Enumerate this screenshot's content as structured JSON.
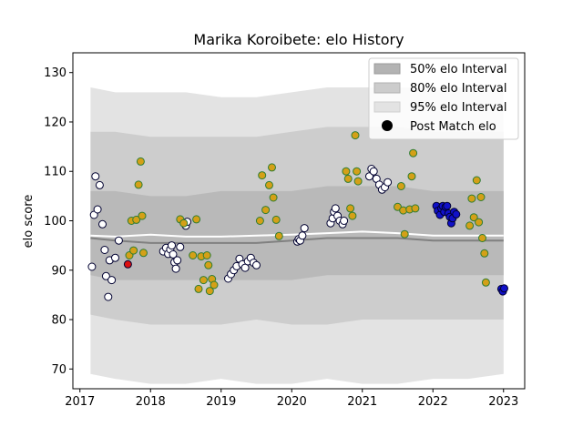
{
  "colors": {
    "band95": "#e3e3e3",
    "band80": "#cdcdcd",
    "band50": "#b9b9b9",
    "median_line": "#808080",
    "mean_line": "#ffffff",
    "point_white": "#ffffff",
    "point_gold": "#d4a017",
    "point_blue": "#1010c8",
    "point_red": "#dd1010",
    "marker_edge_green": "#2e7d32",
    "marker_edge_dark": "#000030"
  },
  "chart_data": {
    "type": "scatter",
    "title": "Marika Koroibete: elo History",
    "xlabel": "",
    "ylabel": "elo score",
    "xlim": [
      2016.9,
      2023.3
    ],
    "ylim": [
      66,
      134
    ],
    "x_ticks": [
      2017,
      2018,
      2019,
      2020,
      2021,
      2022,
      2023
    ],
    "y_ticks": [
      70,
      80,
      90,
      100,
      110,
      120,
      130
    ],
    "legend": {
      "placement": "top-right",
      "entries": [
        "50% elo Interval",
        "80% elo Interval",
        "95% elo Interval",
        "Post Match elo"
      ]
    },
    "bands": {
      "x": [
        2017.15,
        2017.5,
        2018.0,
        2018.5,
        2019.0,
        2019.5,
        2020.0,
        2020.5,
        2021.0,
        2021.5,
        2022.0,
        2022.5,
        2023.0
      ],
      "p95_high": [
        127,
        126,
        126,
        126,
        125,
        125,
        126,
        127,
        127,
        127,
        127,
        127,
        126
      ],
      "p95_low": [
        69,
        68,
        67,
        67,
        68,
        67,
        67,
        68,
        67,
        67,
        68,
        68,
        69
      ],
      "p80_high": [
        118,
        118,
        117,
        117,
        117,
        117,
        118,
        119,
        119,
        119,
        118,
        118,
        118
      ],
      "p80_low": [
        81,
        80,
        79,
        79,
        79,
        80,
        79,
        79,
        80,
        80,
        80,
        80,
        80
      ],
      "p50_high": [
        106,
        106,
        105,
        105,
        106,
        106,
        106,
        107,
        107,
        107,
        106,
        106,
        106
      ],
      "p50_low": [
        89,
        88,
        88,
        88,
        88,
        88,
        88,
        89,
        89,
        89,
        89,
        89,
        89
      ],
      "median": [
        96.5,
        96.0,
        95.5,
        95.5,
        95.5,
        95.5,
        96.0,
        96.5,
        96.5,
        96.5,
        96.0,
        96.0,
        96.0
      ],
      "mean": [
        97.0,
        96.8,
        97.2,
        96.8,
        96.8,
        97.0,
        97.2,
        97.5,
        97.8,
        97.5,
        97.0,
        97.0,
        97.0
      ]
    },
    "series": [
      {
        "color_key": "white",
        "points": [
          [
            2017.17,
            90.7
          ],
          [
            2017.2,
            101.2
          ],
          [
            2017.22,
            109
          ],
          [
            2017.25,
            102.3
          ],
          [
            2017.28,
            107.2
          ],
          [
            2017.32,
            99.3
          ],
          [
            2017.35,
            94.1
          ],
          [
            2017.37,
            88.8
          ],
          [
            2017.4,
            84.6
          ],
          [
            2017.42,
            92
          ],
          [
            2017.45,
            88
          ],
          [
            2017.5,
            92.5
          ],
          [
            2017.55,
            96
          ],
          [
            2018.18,
            93.8
          ],
          [
            2018.22,
            94.5
          ],
          [
            2018.25,
            93.3
          ],
          [
            2018.28,
            94.2
          ],
          [
            2018.3,
            95
          ],
          [
            2018.32,
            93.2
          ],
          [
            2018.34,
            91.6
          ],
          [
            2018.36,
            90.3
          ],
          [
            2018.38,
            92
          ],
          [
            2018.42,
            94.7
          ],
          [
            2018.5,
            99
          ],
          [
            2018.52,
            99.8
          ],
          [
            2019.1,
            88.3
          ],
          [
            2019.14,
            89.2
          ],
          [
            2019.18,
            90
          ],
          [
            2019.22,
            90.8
          ],
          [
            2019.26,
            92.3
          ],
          [
            2019.3,
            91.2
          ],
          [
            2019.34,
            90.5
          ],
          [
            2019.38,
            91.8
          ],
          [
            2019.42,
            92.5
          ],
          [
            2019.46,
            91.5
          ],
          [
            2019.5,
            91
          ],
          [
            2020.08,
            95.8
          ],
          [
            2020.1,
            96.3
          ],
          [
            2020.12,
            96
          ],
          [
            2020.15,
            97
          ],
          [
            2020.18,
            98.5
          ],
          [
            2020.55,
            99.5
          ],
          [
            2020.58,
            100.5
          ],
          [
            2020.6,
            101.8
          ],
          [
            2020.62,
            102.5
          ],
          [
            2020.65,
            101
          ],
          [
            2020.68,
            100
          ],
          [
            2020.72,
            99.3
          ],
          [
            2020.74,
            100
          ],
          [
            2021.1,
            109
          ],
          [
            2021.13,
            110.5
          ],
          [
            2021.16,
            110
          ],
          [
            2021.2,
            108.5
          ],
          [
            2021.24,
            107.3
          ],
          [
            2021.28,
            106.3
          ],
          [
            2021.32,
            106.8
          ],
          [
            2021.36,
            107.8
          ]
        ]
      },
      {
        "color_key": "gold",
        "points": [
          [
            2017.7,
            93
          ],
          [
            2017.73,
            100
          ],
          [
            2017.76,
            94
          ],
          [
            2017.8,
            100.2
          ],
          [
            2017.83,
            107.3
          ],
          [
            2017.86,
            112
          ],
          [
            2017.88,
            101
          ],
          [
            2017.9,
            93.5
          ],
          [
            2018.42,
            100.3
          ],
          [
            2018.47,
            99.5
          ],
          [
            2018.6,
            93
          ],
          [
            2018.65,
            100.3
          ],
          [
            2018.68,
            86.2
          ],
          [
            2018.72,
            92.8
          ],
          [
            2018.75,
            88
          ],
          [
            2018.8,
            93
          ],
          [
            2018.82,
            91
          ],
          [
            2018.84,
            85.8
          ],
          [
            2018.87,
            88.2
          ],
          [
            2018.9,
            87
          ],
          [
            2019.55,
            100
          ],
          [
            2019.58,
            109.2
          ],
          [
            2019.63,
            102.2
          ],
          [
            2019.68,
            107.2
          ],
          [
            2019.72,
            110.8
          ],
          [
            2019.74,
            104.7
          ],
          [
            2019.78,
            100.2
          ],
          [
            2019.82,
            96.9
          ],
          [
            2020.77,
            110
          ],
          [
            2020.8,
            108.5
          ],
          [
            2020.83,
            102.5
          ],
          [
            2020.86,
            101
          ],
          [
            2020.9,
            117.3
          ],
          [
            2020.92,
            110
          ],
          [
            2020.94,
            108
          ],
          [
            2021.5,
            102.8
          ],
          [
            2021.55,
            107
          ],
          [
            2021.58,
            102.1
          ],
          [
            2021.6,
            97.3
          ],
          [
            2021.67,
            102.3
          ],
          [
            2021.7,
            109
          ],
          [
            2021.72,
            113.7
          ],
          [
            2021.75,
            102.5
          ],
          [
            2022.52,
            99
          ],
          [
            2022.55,
            104.5
          ],
          [
            2022.58,
            100.7
          ],
          [
            2022.62,
            108.2
          ],
          [
            2022.65,
            99.7
          ],
          [
            2022.68,
            104.8
          ],
          [
            2022.7,
            96.5
          ],
          [
            2022.73,
            93.4
          ],
          [
            2022.75,
            87.5
          ]
        ]
      },
      {
        "color_key": "blue",
        "points": [
          [
            2022.05,
            103
          ],
          [
            2022.07,
            102
          ],
          [
            2022.1,
            101.2
          ],
          [
            2022.12,
            102.5
          ],
          [
            2022.14,
            103
          ],
          [
            2022.16,
            101.8
          ],
          [
            2022.18,
            102.8
          ],
          [
            2022.2,
            103
          ],
          [
            2022.22,
            101.5
          ],
          [
            2022.24,
            100.8
          ],
          [
            2022.26,
            99.5
          ],
          [
            2022.28,
            100.5
          ],
          [
            2022.3,
            101.8
          ],
          [
            2022.33,
            101.3
          ],
          [
            2022.97,
            86.2
          ],
          [
            2022.99,
            85.7
          ],
          [
            2023.01,
            86.3
          ]
        ]
      },
      {
        "color_key": "red",
        "points": [
          [
            2017.68,
            91.2
          ]
        ]
      }
    ]
  }
}
